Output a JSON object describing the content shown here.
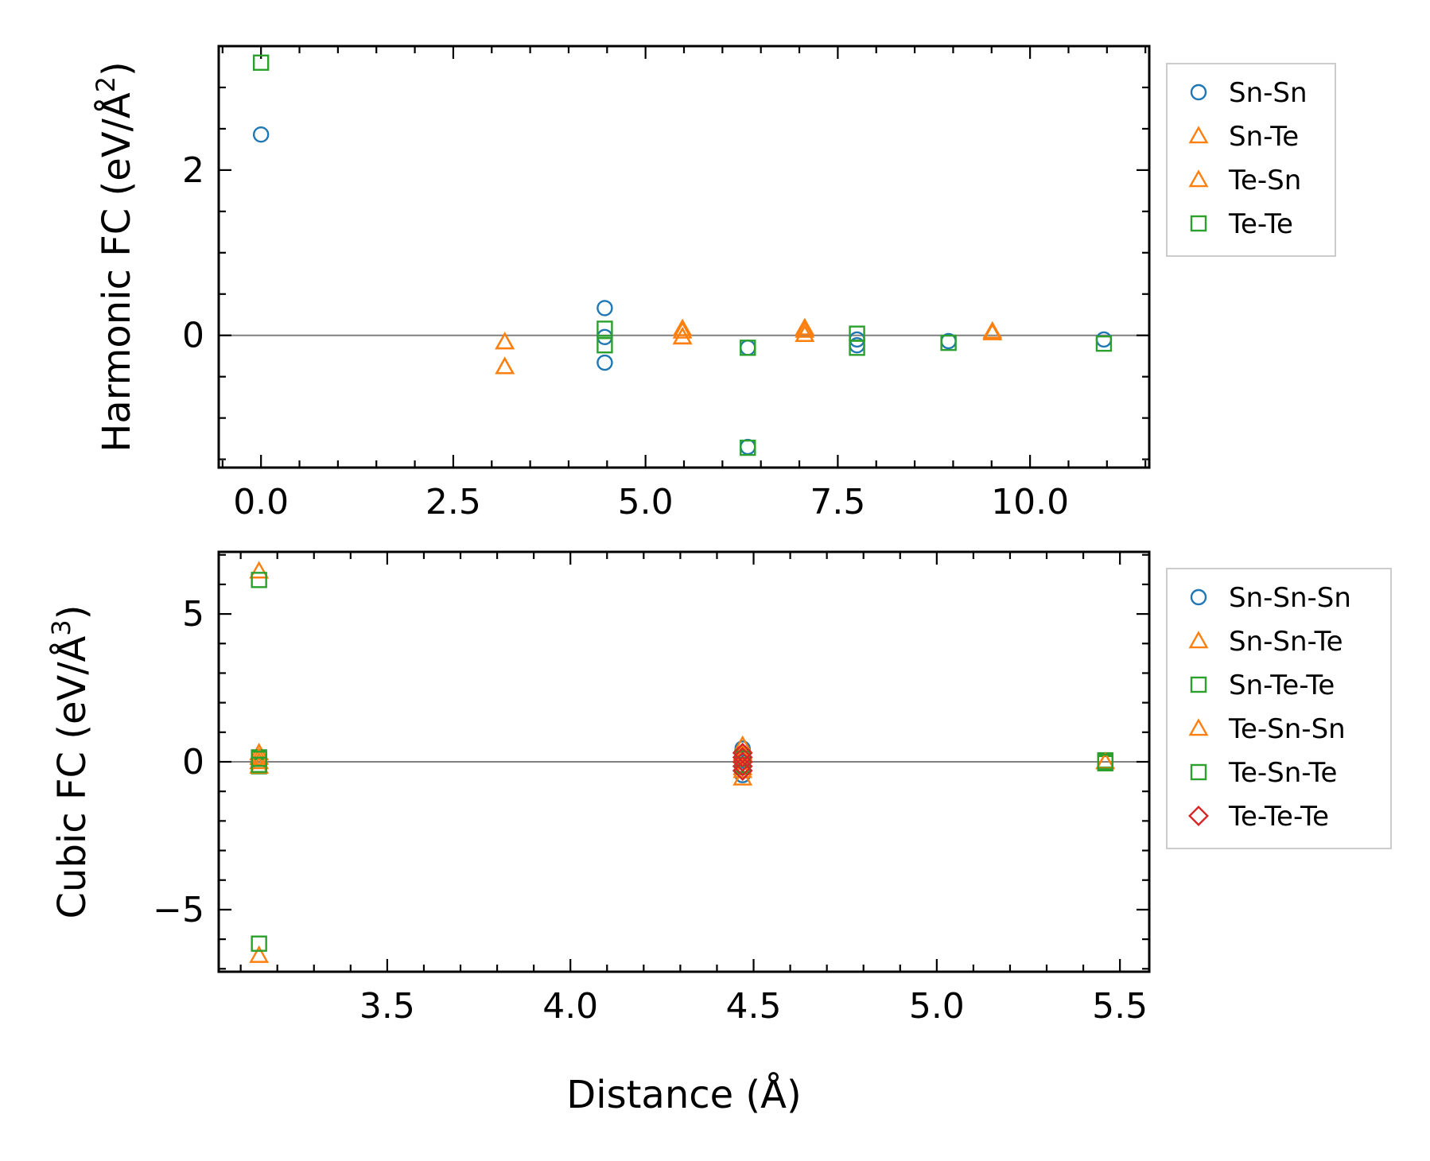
{
  "colors": {
    "sn_sn": "#1f77b4",
    "orange": "#ff7f0e",
    "green": "#2ca02c",
    "red": "#d62728",
    "zero_line": "#808080",
    "legend_border": "#cccccc"
  },
  "chart_data": [
    {
      "type": "scatter",
      "xlabel": "",
      "ylabel": "Harmonic FC (eV/Å²)",
      "ylabel_main": "Harmonic FC (eV/Å",
      "ylabel_sup": "2",
      "ylabel_close": ")",
      "xlim": [
        -0.55,
        11.55
      ],
      "ylim": [
        -1.6,
        3.5
      ],
      "xticks": [
        0.0,
        2.5,
        5.0,
        7.5,
        10.0
      ],
      "xtick_labels": [
        "0.0",
        "2.5",
        "5.0",
        "7.5",
        "10.0"
      ],
      "yticks": [
        0,
        2
      ],
      "ytick_labels": [
        "0",
        "2"
      ],
      "legend_position": "outside-right-top",
      "series": [
        {
          "name": "Sn-Sn",
          "marker": "circle",
          "color": "#1f77b4",
          "x": [
            0.0,
            4.47,
            4.47,
            4.47,
            6.33,
            6.33,
            7.75,
            7.75,
            8.94,
            10.96
          ],
          "y": [
            2.43,
            0.33,
            -0.02,
            -0.33,
            -0.15,
            -1.35,
            -0.05,
            -0.12,
            -0.07,
            -0.05
          ]
        },
        {
          "name": "Sn-Te",
          "marker": "triangle",
          "color": "#ff7f0e",
          "x": [
            3.17,
            3.17,
            5.48,
            5.48,
            7.07,
            7.07,
            9.51
          ],
          "y": [
            -0.08,
            -0.38,
            0.08,
            -0.02,
            0.09,
            0.01,
            0.05
          ]
        },
        {
          "name": "Te-Sn",
          "marker": "triangle",
          "color": "#ff7f0e",
          "x": [
            3.17,
            3.17,
            5.48,
            5.48,
            7.07,
            7.07,
            9.51
          ],
          "y": [
            -0.08,
            -0.38,
            0.05,
            -0.02,
            0.06,
            0.01,
            0.03
          ]
        },
        {
          "name": "Te-Te",
          "marker": "square",
          "color": "#2ca02c",
          "x": [
            0.0,
            4.47,
            4.47,
            6.33,
            6.33,
            7.75,
            7.75,
            8.94,
            10.96
          ],
          "y": [
            3.3,
            0.08,
            -0.12,
            -0.15,
            -1.36,
            0.02,
            -0.15,
            -0.09,
            -0.1
          ]
        }
      ]
    },
    {
      "type": "scatter",
      "xlabel": "Distance (Å)",
      "ylabel": "Cubic FC (eV/Å³)",
      "ylabel_main": "Cubic FC (eV/Å",
      "ylabel_sup": "3",
      "ylabel_close": ")",
      "xlim": [
        3.04,
        5.58
      ],
      "ylim": [
        -7.1,
        7.1
      ],
      "xticks": [
        3.5,
        4.0,
        4.5,
        5.0,
        5.5
      ],
      "xtick_labels": [
        "3.5",
        "4.0",
        "4.5",
        "5.0",
        "5.5"
      ],
      "yticks": [
        -5,
        0,
        5
      ],
      "ytick_labels": [
        "−5",
        "0",
        "5"
      ],
      "legend_position": "outside-right-top",
      "series": [
        {
          "name": "Sn-Sn-Sn",
          "marker": "circle",
          "color": "#1f77b4",
          "x": [
            4.47,
            4.47,
            4.47,
            4.47,
            4.47
          ],
          "y": [
            0.45,
            0.2,
            0.0,
            -0.2,
            -0.45
          ]
        },
        {
          "name": "Sn-Sn-Te",
          "marker": "triangle",
          "color": "#ff7f0e",
          "x": [
            3.15,
            3.15,
            3.15,
            3.15,
            4.47,
            4.47,
            4.47,
            4.47,
            5.46
          ],
          "y": [
            6.45,
            0.3,
            0.0,
            -6.55,
            0.55,
            0.2,
            -0.2,
            -0.55,
            0.0
          ]
        },
        {
          "name": "Sn-Te-Te",
          "marker": "square",
          "color": "#2ca02c",
          "x": [
            3.15,
            3.15,
            3.15,
            3.15,
            4.47,
            4.47,
            5.46,
            5.46
          ],
          "y": [
            6.15,
            0.15,
            -0.15,
            -6.15,
            0.15,
            -0.15,
            0.05,
            -0.05
          ]
        },
        {
          "name": "Te-Sn-Sn",
          "marker": "triangle",
          "color": "#ff7f0e",
          "x": [
            3.15,
            3.15,
            4.47,
            4.47,
            5.46
          ],
          "y": [
            0.15,
            -0.15,
            0.3,
            -0.3,
            0.0
          ]
        },
        {
          "name": "Te-Sn-Te",
          "marker": "square",
          "color": "#2ca02c",
          "x": [
            3.15,
            3.15,
            4.47,
            4.47,
            5.46
          ],
          "y": [
            0.1,
            -0.1,
            0.1,
            -0.1,
            0.0
          ]
        },
        {
          "name": "Te-Te-Te",
          "marker": "diamond",
          "color": "#d62728",
          "x": [
            4.47,
            4.47,
            4.47,
            4.47,
            4.47
          ],
          "y": [
            0.3,
            0.15,
            0.0,
            -0.15,
            -0.3
          ]
        }
      ]
    }
  ]
}
